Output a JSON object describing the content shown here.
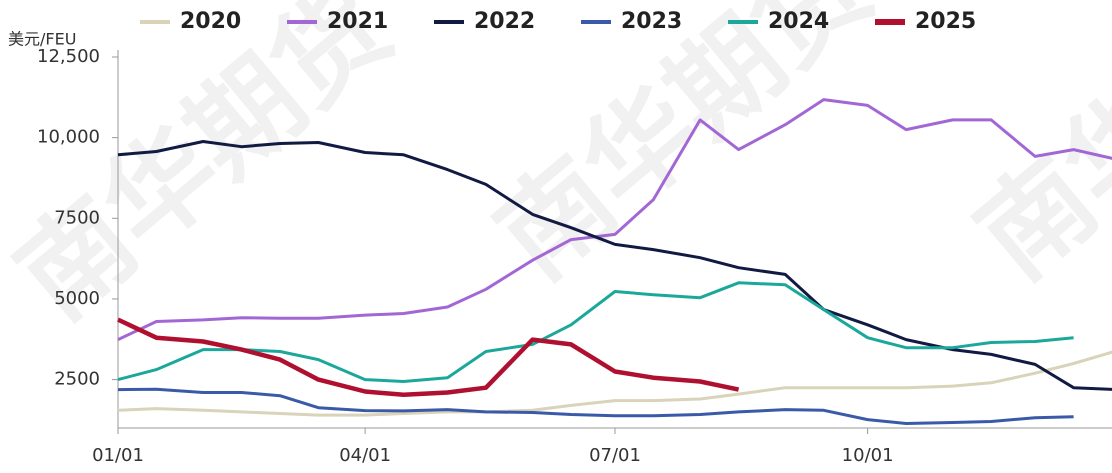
{
  "chart_data": {
    "type": "line",
    "y_label": "美元/FEU",
    "watermark": "南华期货",
    "x": [
      "01/01",
      "01/15",
      "02/01",
      "02/15",
      "03/01",
      "03/15",
      "04/01",
      "04/15",
      "05/01",
      "05/15",
      "06/01",
      "06/15",
      "07/01",
      "07/15",
      "08/01",
      "08/15",
      "09/01",
      "09/15",
      "10/01",
      "10/15",
      "11/01",
      "11/15",
      "12/01",
      "12/15",
      "12/31"
    ],
    "xticks": [
      "01/01",
      "04/01",
      "07/01",
      "10/01"
    ],
    "xlim": [
      "01/01",
      "12/29"
    ],
    "ylim": [
      1000,
      12500
    ],
    "yticks": [
      2500,
      5000,
      7500,
      {
        "value": 10000,
        "label": "10,000"
      },
      {
        "value": 12500,
        "label": "12,500"
      }
    ],
    "series": [
      {
        "name": "2020",
        "color": "#d9d3b9",
        "values": [
          1550,
          1600,
          1550,
          1500,
          1450,
          1400,
          1400,
          1450,
          1500,
          1500,
          1550,
          1700,
          1850,
          1850,
          1900,
          2050,
          2250,
          2250,
          2250,
          2250,
          2300,
          2400,
          2700,
          3000,
          3400
        ]
      },
      {
        "name": "2021",
        "color": "#a267d4",
        "values": [
          3740,
          4300,
          4350,
          4420,
          4400,
          4400,
          4500,
          4550,
          4750,
          5300,
          6200,
          6840,
          7000,
          8080,
          10550,
          9630,
          10400,
          11180,
          11000,
          10250,
          10550,
          10550,
          9420,
          9630,
          9320
        ]
      },
      {
        "name": "2022",
        "color": "#111a42",
        "values": [
          9470,
          9570,
          9880,
          9720,
          9820,
          9850,
          9540,
          9470,
          9010,
          8550,
          7620,
          7210,
          6690,
          6530,
          6280,
          5970,
          5760,
          4670,
          4200,
          3740,
          3430,
          3280,
          2970,
          2250,
          2190
        ]
      },
      {
        "name": "2023",
        "color": "#3a5aa9",
        "values": [
          2190,
          2200,
          2100,
          2100,
          2000,
          1630,
          1540,
          1530,
          1570,
          1500,
          1480,
          1420,
          1380,
          1380,
          1420,
          1500,
          1570,
          1550,
          1260,
          1140,
          1170,
          1200,
          1320,
          1350,
          null
        ]
      },
      {
        "name": "2024",
        "color": "#1ba89b",
        "values": [
          2500,
          2810,
          3430,
          3430,
          3370,
          3120,
          2500,
          2440,
          2560,
          3370,
          3590,
          4200,
          5230,
          5130,
          5040,
          5500,
          5440,
          4670,
          3800,
          3490,
          3490,
          3650,
          3680,
          3800,
          null
        ]
      },
      {
        "name": "2025",
        "color": "#b0102f",
        "values": [
          4360,
          3800,
          3680,
          3430,
          3120,
          2500,
          2130,
          2030,
          2100,
          2250,
          3740,
          3590,
          2750,
          2560,
          2440,
          2190,
          null,
          null,
          null,
          null,
          null,
          null,
          null,
          null,
          null
        ]
      }
    ]
  }
}
